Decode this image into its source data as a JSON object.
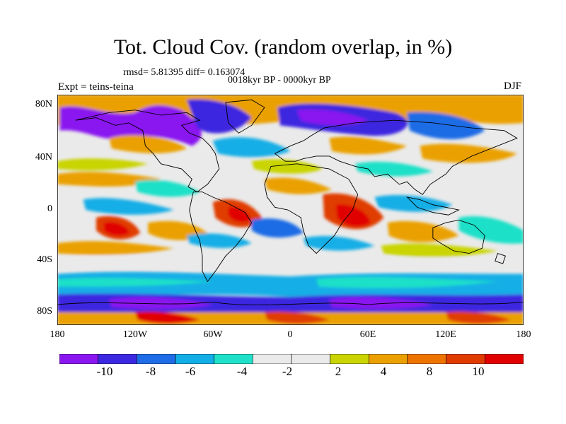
{
  "title": "Tot. Cloud Cov. (random overlap, in %)",
  "stats_line": "rmsd= 5.81395 diff= 0.163074",
  "period_line": "0018kyr BP - 0000kyr BP",
  "experiment_line": "Expt = teins-teina",
  "season": "DJF",
  "map": {
    "projection": "cylindrical equidistant",
    "lon_range": [
      -180,
      180
    ],
    "lat_range": [
      -90,
      90
    ],
    "y_ticks": [
      "80N",
      "40N",
      "0",
      "40S",
      "80S"
    ],
    "x_ticks": [
      "180",
      "120W",
      "60W",
      "0",
      "60E",
      "120E",
      "180"
    ]
  },
  "colorbar": {
    "colors": [
      "#8a17f0",
      "#3c28e0",
      "#1f6ce6",
      "#13aee6",
      "#1fe0c8",
      "#eaeaea",
      "#eaeaea",
      "#c9d400",
      "#eaa000",
      "#ee7400",
      "#e03c00",
      "#e00000"
    ],
    "labels": [
      "-10",
      "-8",
      "-6",
      "-4",
      "-2",
      "2",
      "4",
      "8",
      "10"
    ]
  }
}
